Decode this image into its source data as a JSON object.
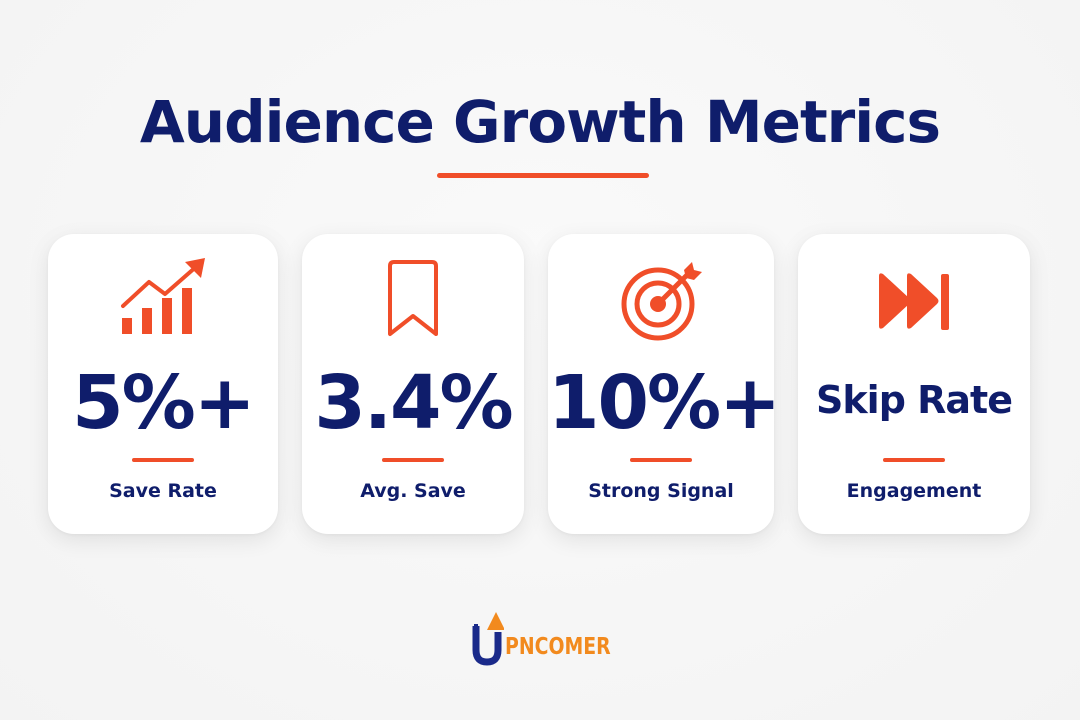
{
  "header": {
    "title": "Audience Growth Metrics"
  },
  "cards": [
    {
      "value": "5%+",
      "label": "Save Rate",
      "icon": "chart-growth-icon"
    },
    {
      "value": "3.4%",
      "label": "Avg. Save",
      "icon": "bookmark-icon"
    },
    {
      "value": "10%+",
      "label": "Strong Signal",
      "icon": "target-icon"
    },
    {
      "value": "Skip Rate",
      "label": "Engagement",
      "icon": "fast-forward-icon"
    }
  ],
  "logo": {
    "text": "PNCOMER"
  },
  "colors": {
    "navy": "#0f1d6b",
    "accent": "#f04e29",
    "logo_orange": "#f28a1e"
  }
}
